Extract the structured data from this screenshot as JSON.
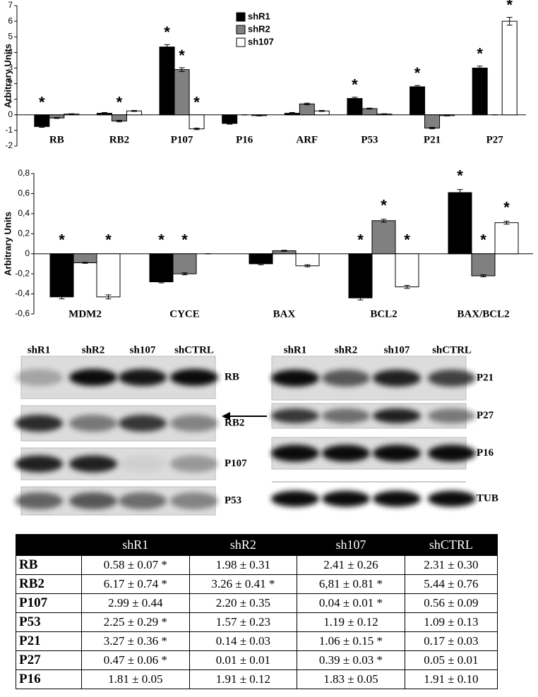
{
  "chart_data": [
    {
      "type": "bar",
      "y_label": "Arbitrary Units",
      "categories": [
        "RB",
        "RB2",
        "P107",
        "P16",
        "ARF",
        "P53",
        "P21",
        "P27"
      ],
      "ylim": [
        -2,
        7
      ],
      "yticks": [
        -2,
        -1,
        0,
        1,
        2,
        3,
        4,
        5,
        6,
        7
      ],
      "legend": "top",
      "series": [
        {
          "name": "shR1",
          "color": "#000000",
          "values": [
            -0.75,
            0.1,
            4.35,
            -0.55,
            0.1,
            1.05,
            1.8,
            3.0
          ],
          "errors": [
            0.05,
            0.05,
            0.15,
            0.05,
            0.05,
            0.08,
            0.08,
            0.12
          ],
          "stars": [
            "*",
            null,
            "*",
            null,
            null,
            "*",
            "*",
            "*"
          ]
        },
        {
          "name": "shR2",
          "color": "#808080",
          "values": [
            -0.2,
            -0.4,
            2.9,
            0,
            0.7,
            0.4,
            -0.85,
            0
          ],
          "errors": [
            0.03,
            0.05,
            0.12,
            0,
            0.05,
            0.03,
            0.05,
            0
          ],
          "stars": [
            null,
            "*",
            "*",
            null,
            null,
            null,
            null,
            null
          ]
        },
        {
          "name": "sh107",
          "color": "#ffffff",
          "values": [
            0.05,
            0.25,
            -0.9,
            -0.05,
            0.25,
            0.05,
            -0.05,
            6.0
          ],
          "errors": [
            0.02,
            0.03,
            0.05,
            0.02,
            0.03,
            0.02,
            0.02,
            0.25
          ],
          "stars": [
            null,
            null,
            "*",
            null,
            null,
            null,
            null,
            "*"
          ]
        }
      ]
    },
    {
      "type": "bar",
      "y_label": "Arbitrary Units",
      "categories": [
        "MDM2",
        "CYCE",
        "BAX",
        "BCL2",
        "BAX/BCL2"
      ],
      "ylim": [
        -0.6,
        0.8
      ],
      "yticks": [
        {
          "value": -0.6,
          "label": "-0,6"
        },
        {
          "value": -0.4,
          "label": "-0,4"
        },
        {
          "value": -0.2,
          "label": "-0,2"
        },
        0,
        {
          "value": 0.2,
          "label": "0,2"
        },
        {
          "value": 0.4,
          "label": "0,4"
        },
        {
          "value": 0.6,
          "label": "0,6"
        },
        {
          "value": 0.8,
          "label": "0,8"
        }
      ],
      "series": [
        {
          "color": "#000000",
          "values": [
            -0.43,
            -0.28,
            -0.1,
            -0.44,
            0.61
          ],
          "errors": [
            0.02,
            0.01,
            0.01,
            0.02,
            0.03
          ],
          "stars": [
            "*",
            "*",
            null,
            "*",
            "*"
          ]
        },
        {
          "color": "#808080",
          "values": [
            -0.09,
            -0.2,
            0.03,
            0.33,
            -0.22
          ],
          "errors": [
            0.005,
            0.01,
            0.005,
            0.015,
            0.01
          ],
          "stars": [
            null,
            "*",
            null,
            "*",
            "*"
          ]
        },
        {
          "color": "#ffffff",
          "values": [
            -0.43,
            0,
            -0.12,
            -0.33,
            0.31
          ],
          "errors": [
            0.02,
            0,
            0.01,
            0.015,
            0.015
          ],
          "stars": [
            "*",
            null,
            null,
            "*",
            "*"
          ]
        }
      ]
    }
  ],
  "blots": [
    {
      "lanes": [
        "shR1",
        "shR2",
        "sh107",
        "shCTRL"
      ],
      "bands": [
        "RB",
        "RB2",
        "P107",
        "P53"
      ]
    },
    {
      "lanes": [
        "shR1",
        "shR2",
        "sh107",
        "shCTRL"
      ],
      "bands": [
        "P21",
        "P27",
        "P16",
        "TUB"
      ]
    }
  ],
  "table": {
    "columns": [
      "shR1",
      "shR2",
      "sh107",
      "shCTRL"
    ],
    "rows": [
      {
        "label": "RB",
        "cells": [
          "0.58 ± 0.07 *",
          "1.98 ± 0.31",
          "2.41 ± 0.26",
          "2.31 ± 0.30"
        ]
      },
      {
        "label": "RB2",
        "cells": [
          "6.17 ± 0.74 *",
          "3.26 ± 0.41 *",
          "6,81 ± 0.81 *",
          "5.44 ± 0.76"
        ]
      },
      {
        "label": "P107",
        "cells": [
          "2.99 ± 0.44",
          "2.20 ± 0.35",
          "0.04 ± 0.01 *",
          "0.56 ± 0.09"
        ]
      },
      {
        "label": "P53",
        "cells": [
          "2.25 ± 0.29 *",
          "1.57 ± 0.23",
          "1.19 ± 0.12",
          "1.09 ± 0.13"
        ]
      },
      {
        "label": "P21",
        "cells": [
          "3.27 ± 0.36 *",
          "0.14 ± 0.03",
          "1.06 ± 0.15 *",
          "0.17 ± 0.03"
        ]
      },
      {
        "label": "P27",
        "cells": [
          "0.47 ± 0.06 *",
          "0.01 ± 0.01",
          "0.39 ± 0.03 *",
          "0.05 ± 0.01"
        ]
      },
      {
        "label": "P16",
        "cells": [
          "1.81 ± 0.05",
          "1.91 ± 0.12",
          "1.83 ± 0.05",
          "1.91 ± 0.10"
        ]
      }
    ]
  }
}
